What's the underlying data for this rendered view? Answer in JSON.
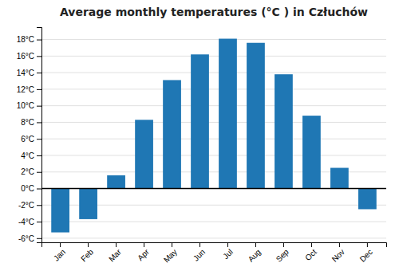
{
  "chart_data": {
    "type": "bar",
    "title": "Average monthly temperatures (°C ) in Człuchów",
    "categories": [
      "Jan",
      "Feb",
      "Mar",
      "Apr",
      "May",
      "Jun",
      "Jul",
      "Aug",
      "Sep",
      "Oct",
      "Nov",
      "Dec"
    ],
    "values": [
      -5.3,
      -3.7,
      1.6,
      8.3,
      13.1,
      16.2,
      18.1,
      17.6,
      13.8,
      8.8,
      2.5,
      -2.5
    ],
    "ylim": [
      -6.5,
      19.5
    ],
    "yticks": [
      {
        "value": -6,
        "label": "-6°C"
      },
      {
        "value": -4,
        "label": "-4°C"
      },
      {
        "value": -2,
        "label": "-2°C"
      },
      {
        "value": 0,
        "label": "0°C"
      },
      {
        "value": 2,
        "label": "2°C"
      },
      {
        "value": 4,
        "label": "4°C"
      },
      {
        "value": 6,
        "label": "6°C"
      },
      {
        "value": 8,
        "label": "8°C"
      },
      {
        "value": 10,
        "label": "10°C"
      },
      {
        "value": 12,
        "label": "12°C"
      },
      {
        "value": 14,
        "label": "14°C"
      },
      {
        "value": 16,
        "label": "16°C"
      },
      {
        "value": 18,
        "label": "18°C"
      }
    ],
    "grid": true
  }
}
